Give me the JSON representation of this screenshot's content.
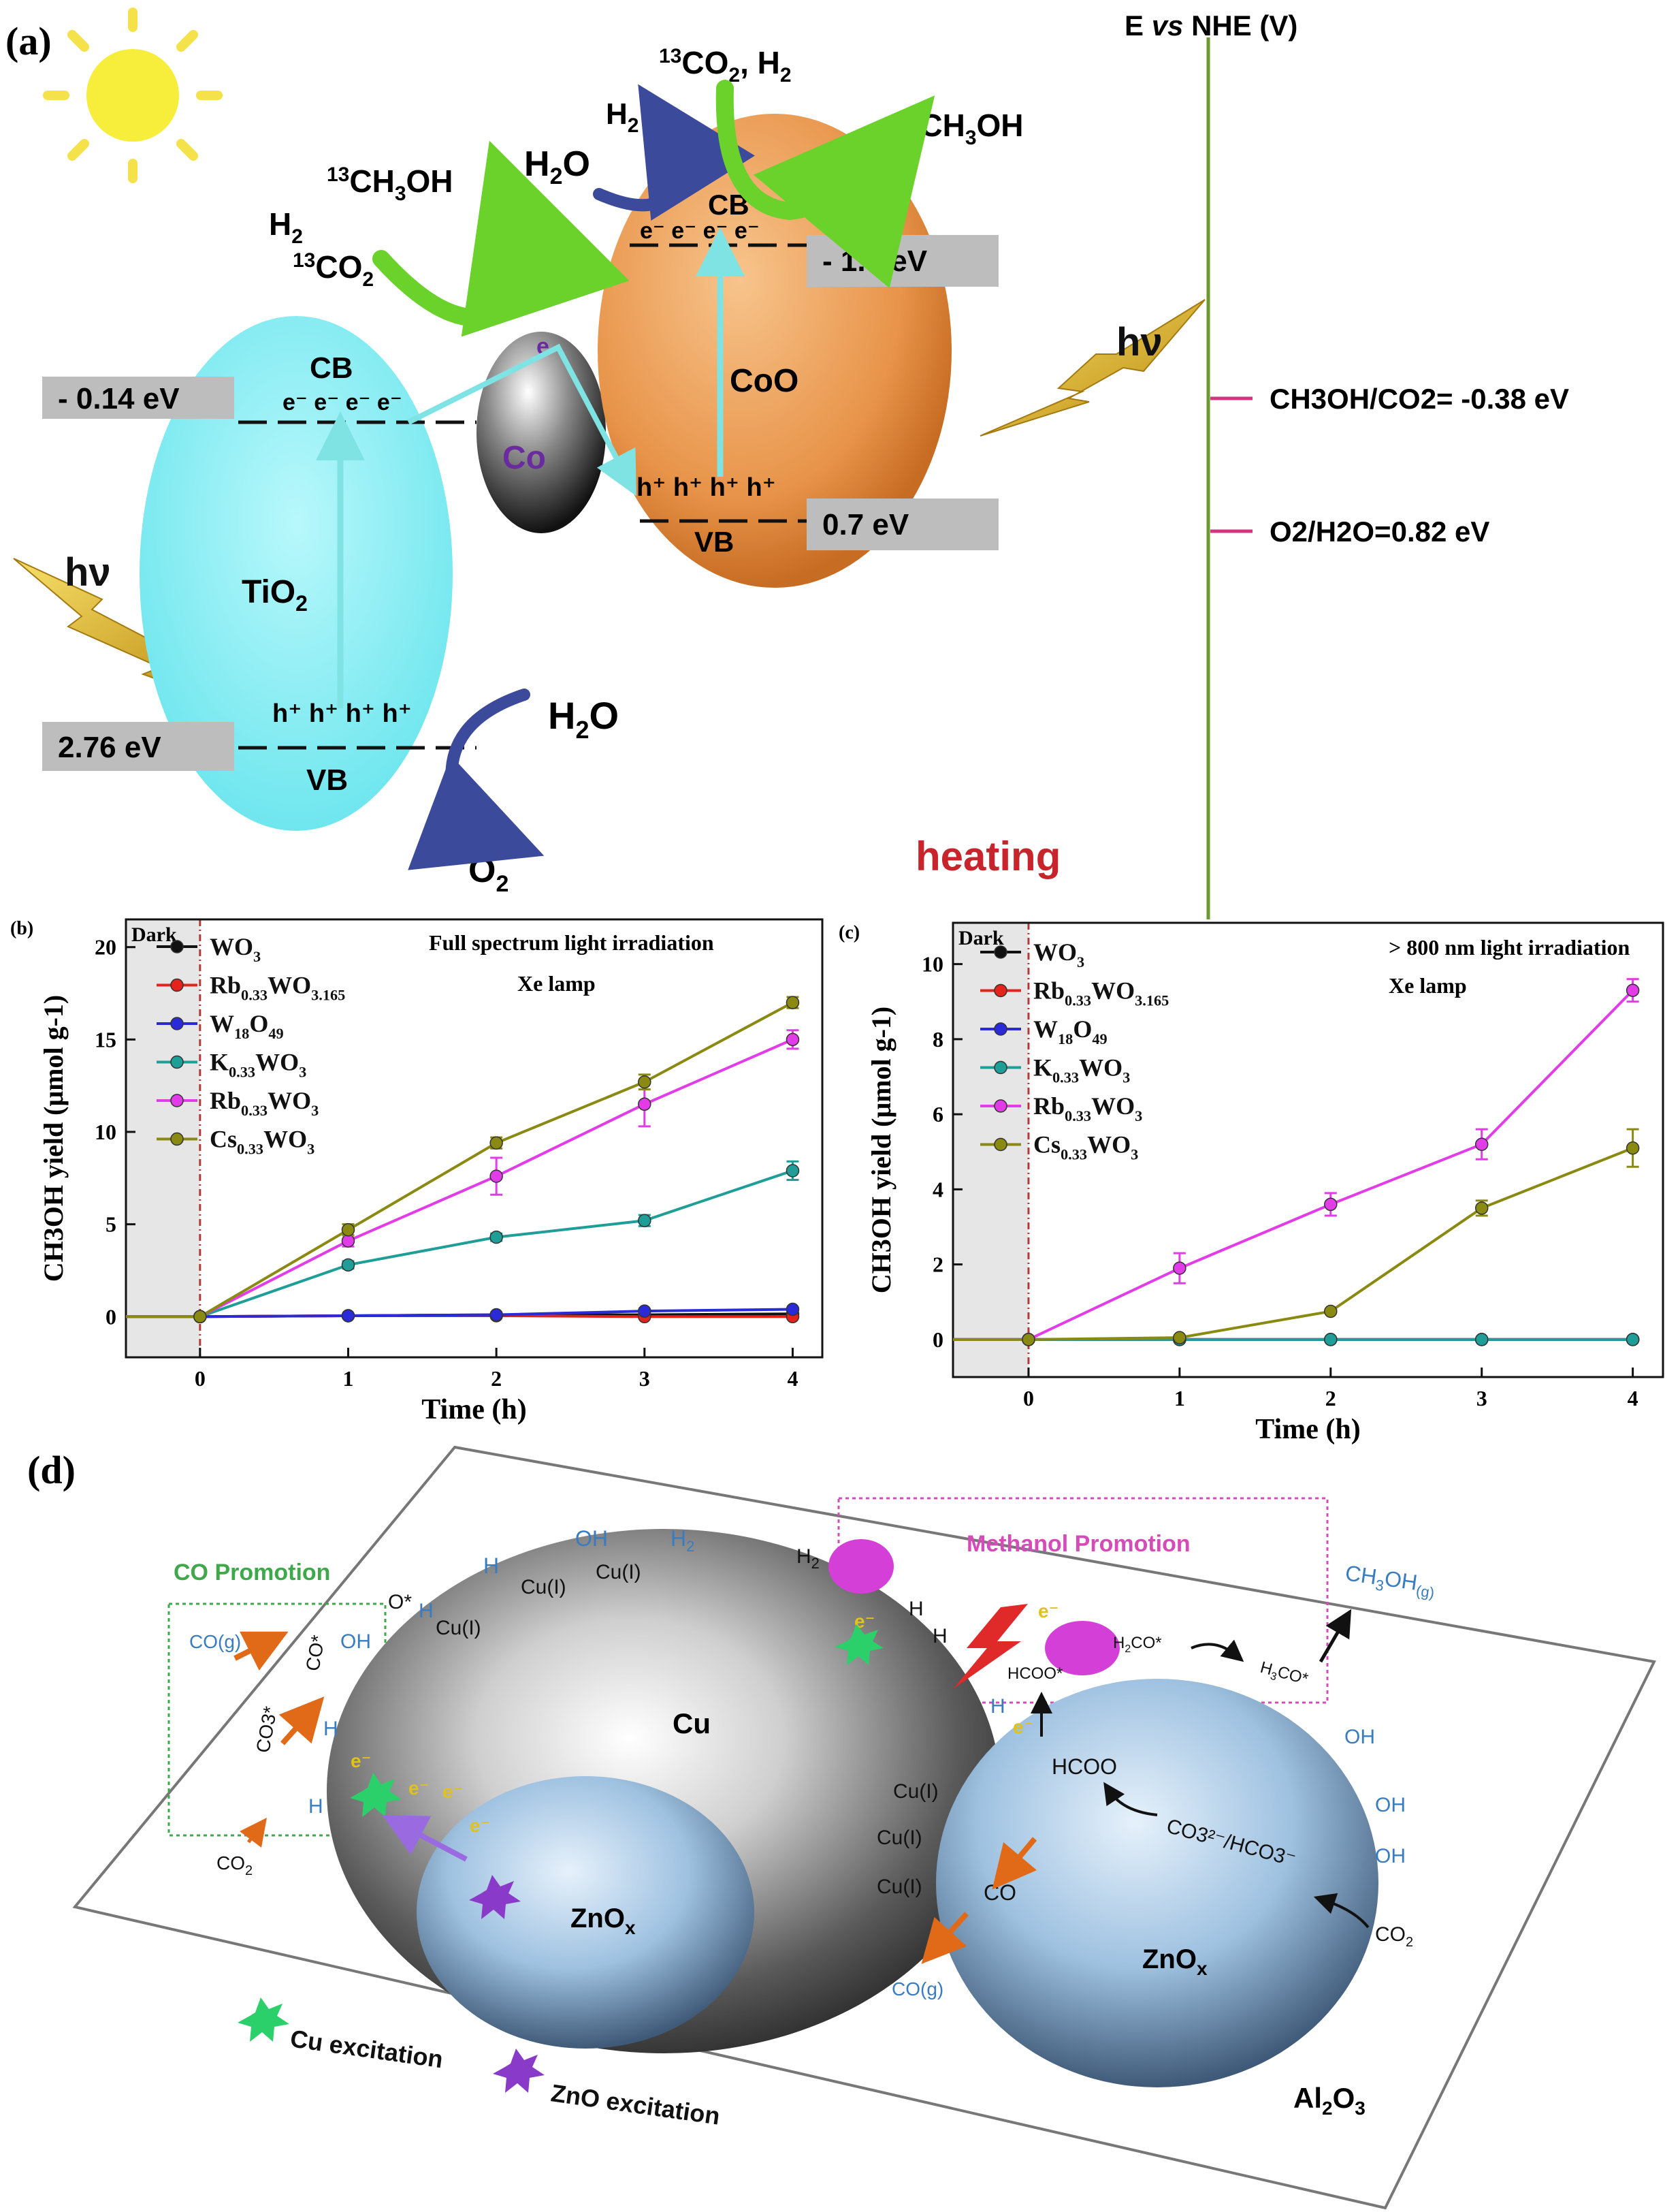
{
  "panel_a": {
    "label": "(a)",
    "scale_title_prefix": "E ",
    "scale_title_italic": "vs",
    "scale_title_suffix": " NHE (V)",
    "levels": {
      "tio2_cb": "- 0.14 eV",
      "tio2_vb": "2.76 eV",
      "coo_cb": "- 1.7 eV",
      "coo_vb": "0.7 eV"
    },
    "potentials": {
      "ch3oh": "CH3OH/CO2= -0.38 eV",
      "o2": "O2/H2O=0.82 eV"
    },
    "materials": {
      "tio2": "TiO2",
      "co": "Co",
      "coo": "CoO"
    },
    "band_labels": {
      "cb": "CB",
      "vb": "VB"
    },
    "carriers": {
      "electron": "e",
      "hole": "h",
      "electrons_row": "e⁻ e⁻ e⁻ e⁻",
      "holes_row": "h⁺ h⁺ h⁺ h⁺"
    },
    "species": {
      "h2": "H2",
      "co2_13": "13CO2",
      "ch3oh_13": "13CH3OH",
      "h2o": "H2O",
      "o2": "O2",
      "co2_h2": "13CO2, H2"
    },
    "hv": "hν",
    "heating": "heating"
  },
  "chart_data": [
    {
      "panel": "(b)",
      "type": "line",
      "annotation": "Full spectrum light irradiation",
      "annotation2": "Xe lamp",
      "dark_label": "Dark",
      "xlabel": "Time (h)",
      "ylabel": "CH3OH yield (μmol g-1)",
      "xlim": [
        -0.5,
        4.2
      ],
      "ylim": [
        -2.2,
        21.5
      ],
      "xticks": [
        0,
        1,
        2,
        3,
        4
      ],
      "yticks": [
        0,
        5,
        10,
        15,
        20
      ],
      "dark_region": [
        -0.5,
        0
      ],
      "series": [
        {
          "name": "WO3",
          "color": "#111111",
          "x": [
            -0.5,
            0,
            1,
            2,
            3,
            4
          ],
          "y": [
            0,
            0,
            0.05,
            0.1,
            0.1,
            0.15
          ]
        },
        {
          "name": "Rb0.33WO3.165",
          "color": "#e3231c",
          "x": [
            -0.5,
            0,
            1,
            2,
            3,
            4
          ],
          "y": [
            0,
            0,
            0.05,
            0.05,
            0,
            0
          ]
        },
        {
          "name": "W18O49",
          "color": "#2a2ad8",
          "x": [
            -0.5,
            0,
            1,
            2,
            3,
            4
          ],
          "y": [
            0,
            0,
            0.05,
            0.1,
            0.3,
            0.4
          ]
        },
        {
          "name": "K0.33WO3",
          "color": "#1f9e98",
          "x": [
            -0.5,
            0,
            1,
            2,
            3,
            4
          ],
          "y": [
            0,
            0,
            2.8,
            4.3,
            5.2,
            7.9
          ],
          "err": [
            0,
            0,
            0.2,
            0.2,
            0.3,
            0.5
          ]
        },
        {
          "name": "Rb0.33WO3",
          "color": "#e23be8",
          "x": [
            -0.5,
            0,
            1,
            2,
            3,
            4
          ],
          "y": [
            0,
            0,
            4.1,
            7.6,
            11.5,
            15.0
          ],
          "err": [
            0,
            0,
            0.3,
            1.0,
            1.2,
            0.5
          ]
        },
        {
          "name": "Cs0.33WO3",
          "color": "#8a8a12",
          "x": [
            -0.5,
            0,
            1,
            2,
            3,
            4
          ],
          "y": [
            0,
            0,
            4.7,
            9.4,
            12.7,
            17.0
          ],
          "err": [
            0,
            0,
            0.3,
            0.3,
            0.4,
            0.3
          ]
        }
      ]
    },
    {
      "panel": "(c)",
      "type": "line",
      "annotation": "> 800 nm light irradiation",
      "annotation2": "Xe lamp",
      "dark_label": "Dark",
      "xlabel": "Time (h)",
      "ylabel": "CH3OH yield (μmol g-1)",
      "xlim": [
        -0.5,
        4.2
      ],
      "ylim": [
        -1.0,
        11.1
      ],
      "xticks": [
        0,
        1,
        2,
        3,
        4
      ],
      "yticks": [
        0,
        2,
        4,
        6,
        8,
        10
      ],
      "dark_region": [
        -0.5,
        0
      ],
      "series": [
        {
          "name": "WO3",
          "color": "#111111",
          "x": [
            -0.5,
            0,
            1,
            2,
            3,
            4
          ],
          "y": [
            0,
            0,
            0,
            0,
            0,
            0
          ]
        },
        {
          "name": "Rb0.33WO3.165",
          "color": "#e3231c",
          "x": [
            -0.5,
            0,
            1,
            2,
            3,
            4
          ],
          "y": [
            0,
            0,
            0,
            0,
            0,
            0
          ]
        },
        {
          "name": "W18O49",
          "color": "#2a2ad8",
          "x": [
            -0.5,
            0,
            1,
            2,
            3,
            4
          ],
          "y": [
            0,
            0,
            0,
            0,
            0,
            0
          ]
        },
        {
          "name": "K0.33WO3",
          "color": "#1f9e98",
          "x": [
            -0.5,
            0,
            1,
            2,
            3,
            4
          ],
          "y": [
            0,
            0,
            0,
            0,
            0,
            0
          ]
        },
        {
          "name": "Rb0.33WO3",
          "color": "#e23be8",
          "x": [
            -0.5,
            0,
            1,
            2,
            3,
            4
          ],
          "y": [
            0,
            0,
            1.9,
            3.6,
            5.2,
            9.3
          ],
          "err": [
            0,
            0,
            0.4,
            0.3,
            0.4,
            0.3
          ]
        },
        {
          "name": "Cs0.33WO3",
          "color": "#8a8a12",
          "x": [
            -0.5,
            0,
            1,
            2,
            3,
            4
          ],
          "y": [
            0,
            0,
            0.05,
            0.75,
            3.5,
            5.1
          ],
          "err": [
            0,
            0,
            0.05,
            0.05,
            0.2,
            0.5
          ]
        }
      ]
    }
  ],
  "panel_d": {
    "label": "(d)",
    "substrate": "Al2O3",
    "cu": "Cu",
    "zno": "ZnOx",
    "co_promotion": "CO Promotion",
    "methanol_promotion": "Methanol Promotion",
    "legend_cu": "Cu excitation",
    "legend_zno": "ZnO excitation",
    "labels": {
      "co_g": "CO(g)",
      "co2": "CO2",
      "co3": "CO3*",
      "co_star": "CO*",
      "o_star": "O*",
      "h": "H",
      "oh": "OH",
      "h2": "H2",
      "cu_i": "Cu(I)",
      "e": "e⁻",
      "hcoo": "HCOO",
      "hcoo_star": "HCOO*",
      "h2co": "H2CO*",
      "h3co": "H3CO*",
      "ch3oh_g": "CH3OH(g)",
      "co": "CO",
      "carbonate": "CO3²⁻/HCO3⁻"
    }
  }
}
